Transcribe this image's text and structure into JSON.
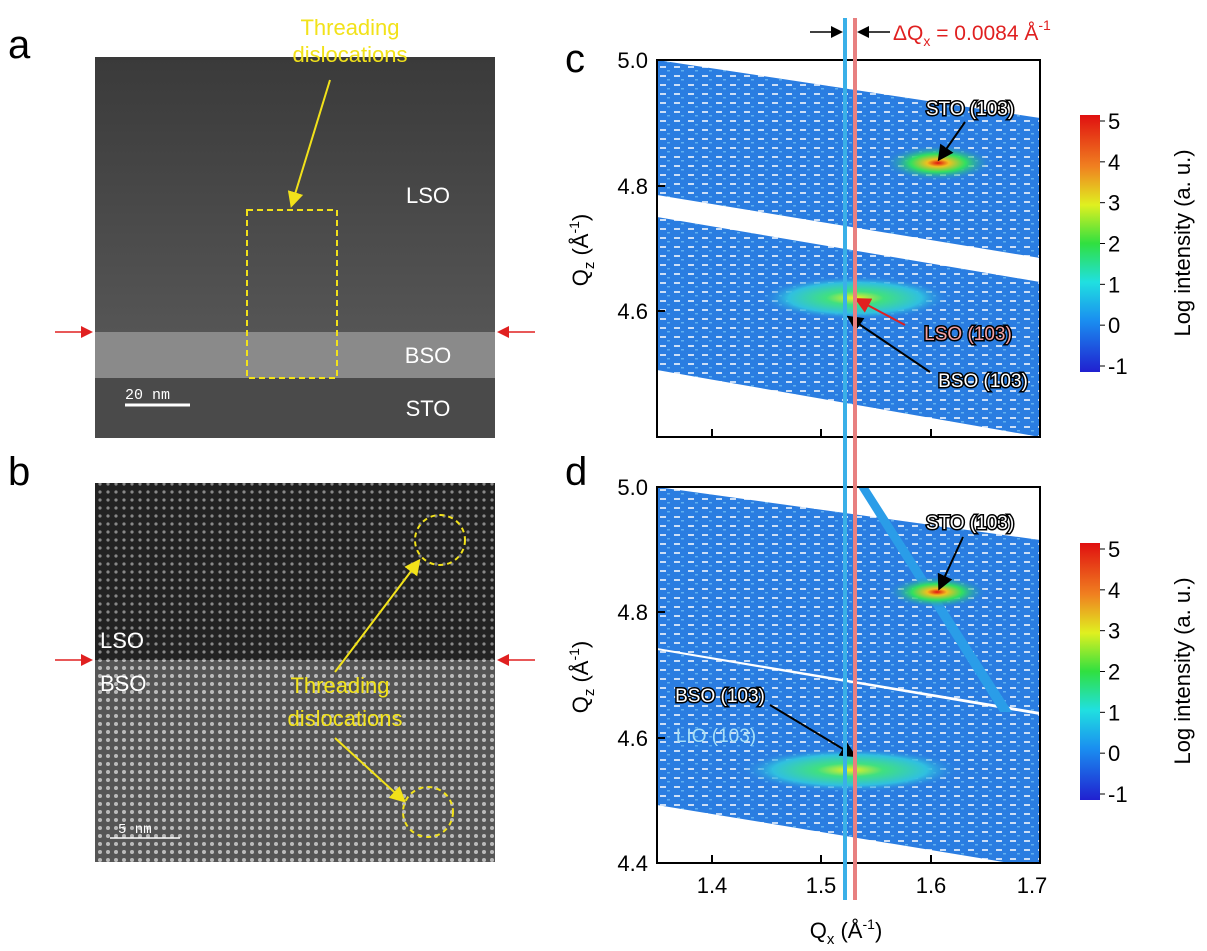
{
  "panels": {
    "a": {
      "label": "a",
      "layers": [
        "LSO",
        "BSO",
        "STO"
      ],
      "scale_bar": "20 nm",
      "annotation": [
        "Threading",
        "dislocations"
      ]
    },
    "b": {
      "label": "b",
      "layers": [
        "LSO",
        "BSO"
      ],
      "scale_bar": "5 nm",
      "annotation": [
        "Threading",
        "dislocations"
      ]
    },
    "c": {
      "label": "c",
      "peaks": [
        "STO (103)",
        "LSO (103)",
        "BSO (103)"
      ],
      "y_ticks": [
        "5.0",
        "4.8",
        "4.6"
      ],
      "colorbar_ticks": [
        "5",
        "4",
        "3",
        "2",
        "1",
        "0",
        "-1"
      ]
    },
    "d": {
      "label": "d",
      "peaks": [
        "STO (103)",
        "BSO (103)",
        "LIO (103)"
      ],
      "y_ticks": [
        "5.0",
        "4.8",
        "4.6",
        "4.4"
      ],
      "x_ticks": [
        "1.4",
        "1.5",
        "1.6",
        "1.7"
      ],
      "colorbar_ticks": [
        "5",
        "4",
        "3",
        "2",
        "1",
        "0",
        "-1"
      ]
    }
  },
  "y_axis_label": {
    "symbol": "Q",
    "sub": "z",
    "unit": " (Å",
    "sup": "-1",
    "close": ")"
  },
  "x_axis_label": {
    "symbol": "Q",
    "sub": "x",
    "unit": " (Å",
    "sup": "-1",
    "close": ")"
  },
  "colorbar_label": "Log intensity (a. u.)",
  "delta": {
    "symbol": "ΔQ",
    "sub": "x",
    "value": " = 0.0084 Å",
    "sup": "-1"
  }
}
